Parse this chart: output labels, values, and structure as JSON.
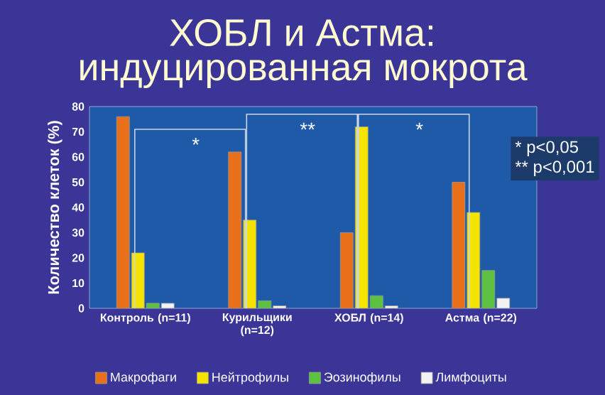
{
  "chart_data": {
    "type": "bar",
    "title": "ХОБЛ и Астма:",
    "subtitle": "индуцированная мокрота",
    "ylabel": "Количество клеток (%)",
    "categories": [
      "Контроль (n=11)",
      "Курильщики (n=12)",
      "ХОБЛ (n=14)",
      "Астма (n=22)"
    ],
    "series": [
      {
        "name": "Макрофаги",
        "color": "#e8701a",
        "values": [
          76,
          62,
          30,
          50
        ]
      },
      {
        "name": "Нейтрофилы",
        "color": "#f5e400",
        "values": [
          22,
          35,
          72,
          38
        ]
      },
      {
        "name": "Эозинофилы",
        "color": "#5cc040",
        "values": [
          2,
          3,
          5,
          15
        ]
      },
      {
        "name": "Лимфоциты",
        "color": "#f2f2f2",
        "values": [
          2,
          1,
          1,
          4
        ]
      }
    ],
    "ylim": [
      0,
      80
    ],
    "yticks": [
      0,
      10,
      20,
      30,
      40,
      50,
      60,
      70,
      80
    ],
    "legend": "bottom",
    "annotations": [
      "*",
      "**",
      "*",
      "*  p<0,05",
      "** p<0,001"
    ]
  }
}
